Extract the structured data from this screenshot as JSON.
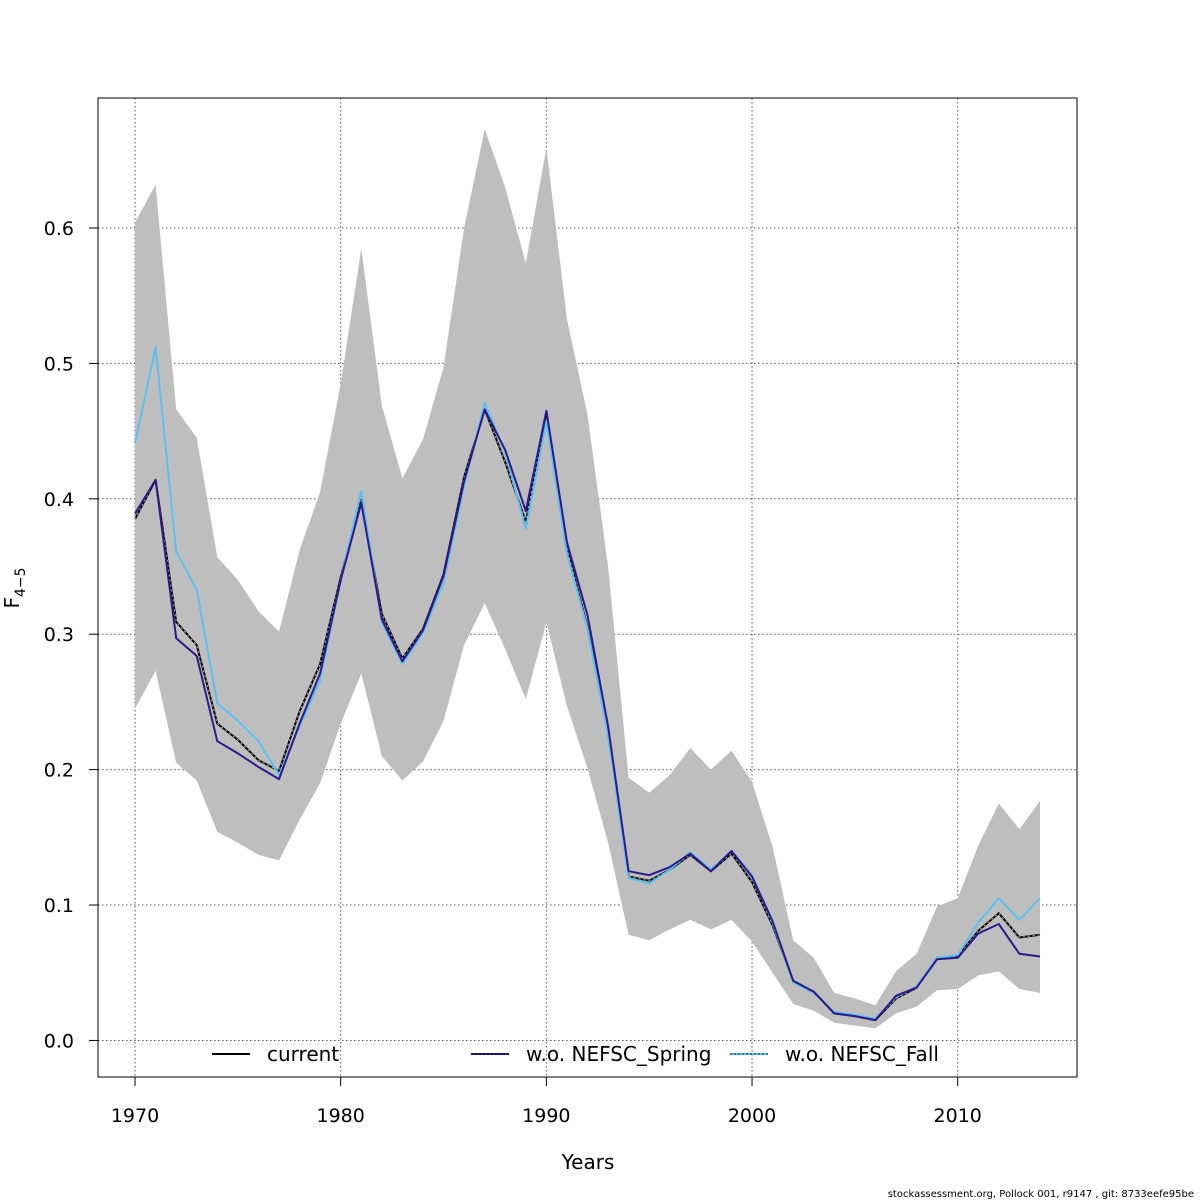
{
  "chart_data": {
    "type": "line",
    "xlabel": "Years",
    "ylabel": "F̅ 4−5",
    "ylabel_main": "F",
    "ylabel_sub": "4−5",
    "xlim": [
      1968.2,
      2015.8
    ],
    "ylim": [
      -0.027,
      0.696
    ],
    "x_ticks": [
      1970,
      1980,
      1990,
      2000,
      2010
    ],
    "y_ticks": [
      0.0,
      0.1,
      0.2,
      0.3,
      0.4,
      0.5,
      0.6
    ],
    "grid": true,
    "legend_position": "bottom",
    "x": [
      1970,
      1971,
      1972,
      1973,
      1974,
      1975,
      1976,
      1977,
      1978,
      1979,
      1980,
      1981,
      1982,
      1983,
      1984,
      1985,
      1986,
      1987,
      1988,
      1989,
      1990,
      1991,
      1992,
      1993,
      1994,
      1995,
      1996,
      1997,
      1998,
      1999,
      2000,
      2001,
      2002,
      2003,
      2004,
      2005,
      2006,
      2007,
      2008,
      2009,
      2010,
      2011,
      2012,
      2013,
      2014
    ],
    "band": {
      "color": "#bebebe",
      "upper": [
        0.604,
        0.632,
        0.466,
        0.445,
        0.357,
        0.34,
        0.317,
        0.302,
        0.362,
        0.405,
        0.485,
        0.585,
        0.469,
        0.415,
        0.444,
        0.497,
        0.6,
        0.673,
        0.63,
        0.574,
        0.659,
        0.533,
        0.462,
        0.35,
        0.194,
        0.183,
        0.196,
        0.216,
        0.2,
        0.214,
        0.191,
        0.143,
        0.074,
        0.061,
        0.035,
        0.031,
        0.026,
        0.051,
        0.064,
        0.099,
        0.105,
        0.144,
        0.175,
        0.156,
        0.177
      ],
      "lower": [
        0.245,
        0.273,
        0.205,
        0.192,
        0.154,
        0.146,
        0.137,
        0.133,
        0.163,
        0.19,
        0.234,
        0.271,
        0.21,
        0.192,
        0.206,
        0.236,
        0.292,
        0.323,
        0.289,
        0.252,
        0.309,
        0.247,
        0.201,
        0.146,
        0.078,
        0.074,
        0.082,
        0.089,
        0.082,
        0.089,
        0.073,
        0.05,
        0.027,
        0.022,
        0.013,
        0.011,
        0.009,
        0.02,
        0.025,
        0.037,
        0.038,
        0.048,
        0.051,
        0.038,
        0.035
      ]
    },
    "series": [
      {
        "name": "current",
        "color": "#000000",
        "style": "solid-dotted",
        "values": [
          0.385,
          0.414,
          0.309,
          0.292,
          0.234,
          0.222,
          0.207,
          0.199,
          0.243,
          0.278,
          0.342,
          0.399,
          0.315,
          0.282,
          0.304,
          0.344,
          0.416,
          0.466,
          0.427,
          0.383,
          0.464,
          0.364,
          0.305,
          0.228,
          0.121,
          0.118,
          0.126,
          0.137,
          0.125,
          0.138,
          0.117,
          0.085,
          0.044,
          0.036,
          0.02,
          0.018,
          0.015,
          0.031,
          0.039,
          0.061,
          0.062,
          0.081,
          0.094,
          0.076,
          0.078
        ]
      },
      {
        "name": "w.o. NEFSC_Spring",
        "color": "#2c1a8c",
        "style": "solid",
        "values": [
          0.389,
          0.414,
          0.297,
          0.284,
          0.221,
          0.212,
          0.202,
          0.193,
          0.234,
          0.271,
          0.34,
          0.397,
          0.311,
          0.28,
          0.303,
          0.343,
          0.413,
          0.466,
          0.436,
          0.391,
          0.465,
          0.368,
          0.314,
          0.232,
          0.125,
          0.122,
          0.128,
          0.138,
          0.125,
          0.14,
          0.121,
          0.088,
          0.044,
          0.036,
          0.02,
          0.018,
          0.015,
          0.033,
          0.039,
          0.06,
          0.061,
          0.079,
          0.086,
          0.064,
          0.062
        ]
      },
      {
        "name": "w.o. NEFSC_Fall",
        "color": "#5bc0f0",
        "style": "solid",
        "values": [
          0.441,
          0.512,
          0.361,
          0.333,
          0.249,
          0.236,
          0.221,
          0.196,
          0.232,
          0.266,
          0.34,
          0.406,
          0.309,
          0.278,
          0.301,
          0.338,
          0.41,
          0.471,
          0.434,
          0.378,
          0.457,
          0.36,
          0.304,
          0.225,
          0.12,
          0.116,
          0.126,
          0.139,
          0.126,
          0.14,
          0.122,
          0.087,
          0.043,
          0.035,
          0.021,
          0.019,
          0.016,
          0.032,
          0.04,
          0.061,
          0.063,
          0.087,
          0.105,
          0.089,
          0.105
        ]
      }
    ]
  },
  "legend": {
    "items": [
      "current",
      "w.o. NEFSC_Spring",
      "w.o. NEFSC_Fall"
    ]
  },
  "footer": {
    "text": "stockassessment.org, Pollock  001, r9147 , git: 8733eefe95be"
  }
}
